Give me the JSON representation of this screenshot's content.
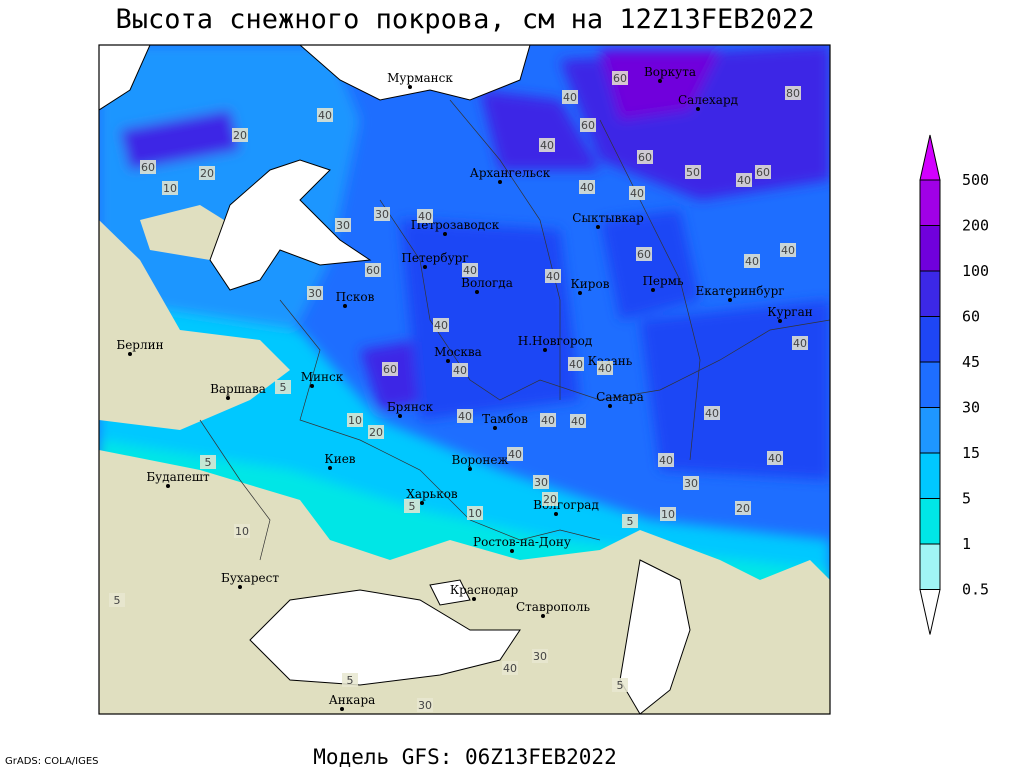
{
  "title": "Высота снежного покрова, см на 12Z13FEB2022",
  "footer": "Модель GFS: 06Z13FEB2022",
  "credit": "GrADS: COLA/IGES",
  "legend": {
    "levels": [
      500,
      200,
      100,
      60,
      45,
      30,
      15,
      5,
      1,
      0.5
    ],
    "colors": [
      "#d200ff",
      "#a000e6",
      "#7000dc",
      "#3c28e6",
      "#1e46f5",
      "#1e6eff",
      "#1e96ff",
      "#00c8ff",
      "#00e6e6",
      "#a0f5f5",
      "#ffffff"
    ]
  },
  "cities": [
    "Мурманск",
    "Воркута",
    "Салехард",
    "Архангельск",
    "Петрозаводск",
    "Сыктывкар",
    "Петербург",
    "Вологда",
    "Киров",
    "Пермь",
    "Екатеринбург",
    "Курган",
    "Псков",
    "Берлин",
    "Н.Новгород",
    "Москва",
    "Казань",
    "Минск",
    "Варшава",
    "Брянск",
    "Самара",
    "Тамбов",
    "Воронеж",
    "Киев",
    "Будапешт",
    "Харьков",
    "Волгоград",
    "Ростов-на-Дону",
    "Бухарест",
    "Краснодар",
    "Ставрополь",
    "Анкара"
  ],
  "contour_labels": [
    40,
    20,
    60,
    10,
    20,
    60,
    40,
    60,
    40,
    60,
    50,
    40,
    60,
    80,
    40,
    40,
    40,
    30,
    30,
    60,
    40,
    40,
    60,
    40,
    40,
    40,
    30,
    5,
    40,
    60,
    40,
    40,
    40,
    10,
    20,
    40,
    40,
    40,
    40,
    40,
    40,
    30,
    40,
    30,
    20,
    10,
    10,
    20,
    5,
    5,
    10,
    5,
    40,
    30,
    5,
    5,
    30,
    5
  ]
}
